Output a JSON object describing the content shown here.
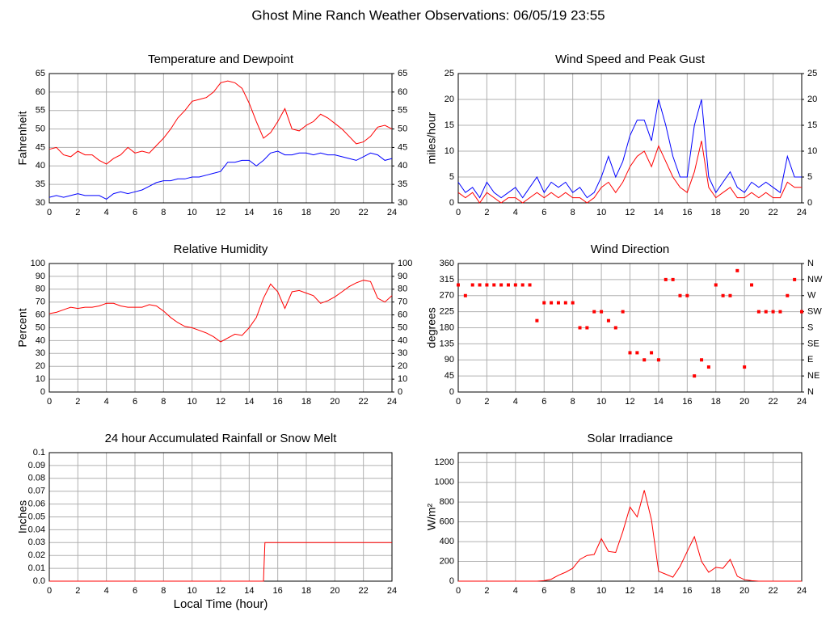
{
  "title": "Ghost Mine Ranch Weather Observations: 06/05/19 23:55",
  "chart_data": [
    {
      "type": "line",
      "title": "Temperature and Dewpoint",
      "ylabel": "Fahrenheit",
      "x": [
        0,
        0.5,
        1,
        1.5,
        2,
        2.5,
        3,
        3.5,
        4,
        4.5,
        5,
        5.5,
        6,
        6.5,
        7,
        7.5,
        8,
        8.5,
        9,
        9.5,
        10,
        10.5,
        11,
        11.5,
        12,
        12.5,
        13,
        13.5,
        14,
        14.5,
        15,
        15.5,
        16,
        16.5,
        17,
        17.5,
        18,
        18.5,
        19,
        19.5,
        20,
        20.5,
        21,
        21.5,
        22,
        22.5,
        23,
        23.5,
        24
      ],
      "series": [
        {
          "color": "#ff0000",
          "values": [
            44.5,
            45,
            43,
            42.5,
            44,
            43,
            43,
            41.5,
            40.5,
            42,
            43,
            45,
            43.5,
            44,
            43.5,
            45.5,
            47.5,
            50,
            53,
            55,
            57.5,
            58,
            58.5,
            60,
            62.5,
            63,
            62.5,
            61,
            57,
            52,
            47.5,
            49,
            52,
            55.5,
            50,
            49.5,
            51,
            52,
            54,
            53,
            51.5,
            50,
            48,
            46,
            46.5,
            48,
            50.5,
            51,
            50
          ]
        },
        {
          "color": "#0000ff",
          "values": [
            31.5,
            32,
            31.5,
            32,
            32.5,
            32,
            32,
            32,
            31,
            32.5,
            33,
            32.5,
            33,
            33.5,
            34.5,
            35.5,
            36,
            36,
            36.5,
            36.5,
            37,
            37,
            37.5,
            38,
            38.5,
            41,
            41,
            41.5,
            41.5,
            40,
            41.5,
            43.5,
            44,
            43,
            43,
            43.5,
            43.5,
            43,
            43.5,
            43,
            43,
            42.5,
            42,
            41.5,
            42.5,
            43.5,
            43,
            41.5,
            42
          ]
        }
      ],
      "xlim": [
        0,
        24
      ],
      "xticks": [
        0,
        2,
        4,
        6,
        8,
        10,
        12,
        14,
        16,
        18,
        20,
        22,
        24
      ],
      "ylim": [
        30,
        65
      ],
      "yticks": [
        30,
        35,
        40,
        45,
        50,
        55,
        60,
        65
      ],
      "y2lim": [
        30,
        65
      ],
      "y2ticks": [
        30,
        35,
        40,
        45,
        50,
        55,
        60,
        65
      ],
      "grid": true
    },
    {
      "type": "line",
      "title": "Wind Speed and Peak Gust",
      "ylabel": "miles/hour",
      "x": [
        0,
        0.5,
        1,
        1.5,
        2,
        2.5,
        3,
        3.5,
        4,
        4.5,
        5,
        5.5,
        6,
        6.5,
        7,
        7.5,
        8,
        8.5,
        9,
        9.5,
        10,
        10.5,
        11,
        11.5,
        12,
        12.5,
        13,
        13.5,
        14,
        14.5,
        15,
        15.5,
        16,
        16.5,
        17,
        17.5,
        18,
        18.5,
        19,
        19.5,
        20,
        20.5,
        21,
        21.5,
        22,
        22.5,
        23,
        23.5,
        24
      ],
      "series": [
        {
          "color": "#0000ff",
          "values": [
            4,
            2,
            3,
            1,
            4,
            2,
            1,
            2,
            3,
            1,
            3,
            5,
            2,
            4,
            3,
            4,
            2,
            3,
            1,
            2,
            5,
            9,
            5,
            8,
            13,
            16,
            16,
            12,
            20,
            15,
            9,
            5,
            5,
            15,
            20,
            5,
            2,
            4,
            6,
            3,
            2,
            4,
            3,
            4,
            3,
            2,
            9,
            5,
            5
          ]
        },
        {
          "color": "#ff0000",
          "values": [
            2,
            1,
            2,
            0,
            2,
            1,
            0,
            1,
            1,
            0,
            1,
            2,
            1,
            2,
            1,
            2,
            1,
            1,
            0,
            1,
            3,
            4,
            2,
            4,
            7,
            9,
            10,
            7,
            11,
            8,
            5,
            3,
            2,
            6,
            12,
            3,
            1,
            2,
            3,
            1,
            1,
            2,
            1,
            2,
            1,
            1,
            4,
            3,
            3
          ]
        }
      ],
      "xlim": [
        0,
        24
      ],
      "xticks": [
        0,
        2,
        4,
        6,
        8,
        10,
        12,
        14,
        16,
        18,
        20,
        22,
        24
      ],
      "ylim": [
        0,
        25
      ],
      "yticks": [
        0,
        5,
        10,
        15,
        20,
        25
      ],
      "y2lim": [
        0,
        25
      ],
      "y2ticks": [
        0,
        5,
        10,
        15,
        20,
        25
      ],
      "grid": true
    },
    {
      "type": "line",
      "title": "Relative Humidity",
      "ylabel": "Percent",
      "x": [
        0,
        0.5,
        1,
        1.5,
        2,
        2.5,
        3,
        3.5,
        4,
        4.5,
        5,
        5.5,
        6,
        6.5,
        7,
        7.5,
        8,
        8.5,
        9,
        9.5,
        10,
        10.5,
        11,
        11.5,
        12,
        12.5,
        13,
        13.5,
        14,
        14.5,
        15,
        15.5,
        16,
        16.5,
        17,
        17.5,
        18,
        18.5,
        19,
        19.5,
        20,
        20.5,
        21,
        21.5,
        22,
        22.5,
        23,
        23.5,
        24
      ],
      "series": [
        {
          "color": "#ff0000",
          "values": [
            61,
            62,
            64,
            66,
            65,
            66,
            66,
            67,
            69,
            69,
            67,
            66,
            66,
            66,
            68,
            67,
            63,
            58,
            54,
            51,
            50,
            48,
            46,
            43,
            39,
            42,
            45,
            44,
            50,
            58,
            73,
            84,
            78,
            65,
            78,
            79,
            77,
            75,
            69,
            71,
            74,
            78,
            82,
            85,
            87,
            86,
            73,
            70,
            75
          ]
        }
      ],
      "xlim": [
        0,
        24
      ],
      "xticks": [
        0,
        2,
        4,
        6,
        8,
        10,
        12,
        14,
        16,
        18,
        20,
        22,
        24
      ],
      "ylim": [
        0,
        100
      ],
      "yticks": [
        0,
        10,
        20,
        30,
        40,
        50,
        60,
        70,
        80,
        90,
        100
      ],
      "y2lim": [
        0,
        100
      ],
      "y2ticks": [
        0,
        10,
        20,
        30,
        40,
        50,
        60,
        70,
        80,
        90,
        100
      ],
      "grid": true
    },
    {
      "type": "scatter",
      "title": "Wind Direction",
      "ylabel": "degrees",
      "x": [
        0,
        0.5,
        1,
        1.5,
        2,
        2.5,
        3,
        3.5,
        4,
        4.5,
        5,
        5.5,
        6,
        6.5,
        7,
        7.5,
        8,
        8.5,
        9,
        9.5,
        10,
        10.5,
        11,
        11.5,
        12,
        12.5,
        13,
        13.5,
        14,
        14.5,
        15,
        15.5,
        16,
        16.5,
        17,
        17.5,
        18,
        18.5,
        19,
        19.5,
        20,
        20.5,
        21,
        21.5,
        22,
        22.5,
        23,
        23.5,
        24
      ],
      "series": [
        {
          "color": "#ff0000",
          "values": [
            300,
            270,
            300,
            300,
            300,
            300,
            300,
            300,
            300,
            300,
            300,
            200,
            250,
            250,
            250,
            250,
            250,
            180,
            180,
            225,
            225,
            200,
            180,
            225,
            110,
            110,
            90,
            110,
            90,
            315,
            315,
            270,
            270,
            45,
            90,
            70,
            300,
            270,
            270,
            340,
            70,
            300,
            225,
            225,
            225,
            225,
            270,
            315,
            225
          ]
        }
      ],
      "xlim": [
        0,
        24
      ],
      "xticks": [
        0,
        2,
        4,
        6,
        8,
        10,
        12,
        14,
        16,
        18,
        20,
        22,
        24
      ],
      "ylim": [
        0,
        360
      ],
      "yticks": [
        0,
        45,
        90,
        135,
        180,
        225,
        270,
        315,
        360
      ],
      "y2lim": [
        0,
        360
      ],
      "y2ticks": [
        {
          "value": 0,
          "label": "N"
        },
        {
          "value": 45,
          "label": "NE"
        },
        {
          "value": 90,
          "label": "E"
        },
        {
          "value": 135,
          "label": "SE"
        },
        {
          "value": 180,
          "label": "S"
        },
        {
          "value": 225,
          "label": "SW"
        },
        {
          "value": 270,
          "label": "W"
        },
        {
          "value": 315,
          "label": "NW"
        },
        {
          "value": 360,
          "label": "N"
        }
      ],
      "grid": true
    },
    {
      "type": "line",
      "title": "24 hour Accumulated Rainfall or Snow Melt",
      "ylabel": "Inches",
      "xlabel": "Local Time (hour)",
      "x": [
        0,
        15,
        15.1,
        24
      ],
      "series": [
        {
          "color": "#ff0000",
          "values": [
            0,
            0,
            0.03,
            0.03
          ]
        }
      ],
      "xlim": [
        0,
        24
      ],
      "xticks": [
        0,
        2,
        4,
        6,
        8,
        10,
        12,
        14,
        16,
        18,
        20,
        22,
        24
      ],
      "ylim": [
        0,
        0.1
      ],
      "yticks": [
        {
          "value": 0,
          "label": "0.0"
        },
        0.01,
        0.02,
        0.03,
        0.04,
        0.05,
        0.06,
        0.07,
        0.08,
        0.09,
        0.1
      ],
      "grid": true
    },
    {
      "type": "line",
      "title": "Solar Irradiance",
      "ylabel": "W/m²",
      "x": [
        0,
        0.5,
        1,
        1.5,
        2,
        2.5,
        3,
        3.5,
        4,
        4.5,
        5,
        5.5,
        6,
        6.5,
        7,
        7.5,
        8,
        8.5,
        9,
        9.5,
        10,
        10.5,
        11,
        11.5,
        12,
        12.5,
        13,
        13.5,
        14,
        14.5,
        15,
        15.5,
        16,
        16.5,
        17,
        17.5,
        18,
        18.5,
        19,
        19.5,
        20,
        20.5,
        21,
        21.5,
        22,
        22.5,
        23,
        23.5,
        24
      ],
      "series": [
        {
          "color": "#ff0000",
          "values": [
            0,
            0,
            0,
            0,
            0,
            0,
            0,
            0,
            0,
            0,
            0,
            0,
            5,
            20,
            60,
            90,
            130,
            220,
            260,
            270,
            430,
            300,
            290,
            500,
            750,
            650,
            920,
            620,
            100,
            70,
            40,
            150,
            300,
            450,
            200,
            90,
            140,
            130,
            220,
            50,
            15,
            5,
            0,
            0,
            0,
            0,
            0,
            0,
            0
          ]
        }
      ],
      "xlim": [
        0,
        24
      ],
      "xticks": [
        0,
        2,
        4,
        6,
        8,
        10,
        12,
        14,
        16,
        18,
        20,
        22,
        24
      ],
      "ylim": [
        0,
        1300
      ],
      "yticks": [
        0,
        200,
        400,
        600,
        800,
        1000,
        1200
      ],
      "grid": true
    }
  ]
}
